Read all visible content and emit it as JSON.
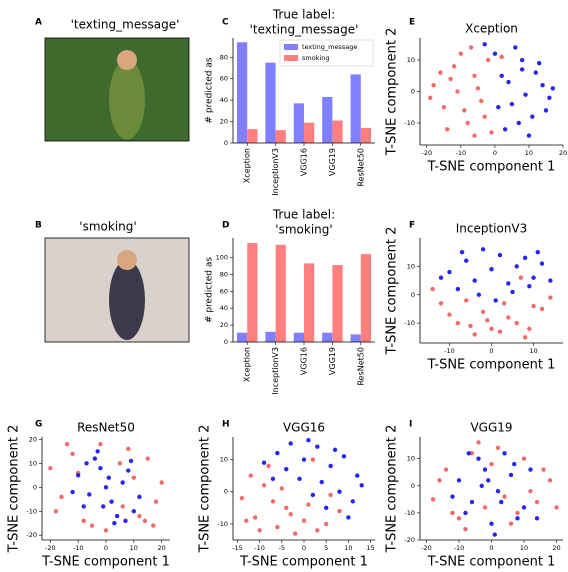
{
  "chart_data": [
    {
      "type": "image",
      "panel_label": "A",
      "title": "'texting_message'"
    },
    {
      "type": "image",
      "panel_label": "B",
      "title": "'smoking'"
    },
    {
      "type": "bar",
      "panel_label": "C",
      "title": [
        "True label:",
        "'texting_message'"
      ],
      "ylabel": "# predicted as",
      "categories": [
        "Xception",
        "InceptionV3",
        "VGG16",
        "VGG19",
        "ResNet50"
      ],
      "series": [
        {
          "name": "texting_message",
          "color": "#7f7fff",
          "values": [
            94,
            75,
            37,
            43,
            64
          ]
        },
        {
          "name": "smoking",
          "color": "#ff7f7f",
          "values": [
            13,
            12,
            19,
            21,
            14
          ]
        }
      ],
      "ylim": [
        0,
        98
      ],
      "yticks": [
        0,
        20,
        40,
        60,
        80
      ],
      "legend": "upper right"
    },
    {
      "type": "bar",
      "panel_label": "D",
      "title": [
        "True label:",
        "'smoking'"
      ],
      "ylabel": "# predicted as",
      "categories": [
        "Xception",
        "InceptionV3",
        "VGG16",
        "VGG19",
        "ResNet50"
      ],
      "series": [
        {
          "name": "texting_message",
          "color": "#7f7fff",
          "values": [
            11,
            12,
            11,
            11,
            9
          ]
        },
        {
          "name": "smoking",
          "color": "#ff7f7f",
          "values": [
            117,
            115,
            93,
            91,
            104
          ]
        }
      ],
      "ylim": [
        0,
        123
      ],
      "yticks": [
        0,
        20,
        40,
        60,
        80,
        100
      ],
      "legend": false
    },
    {
      "type": "scatter",
      "panel_label": "E",
      "title": "Xception",
      "xlabel": "T-SNE component 1",
      "ylabel": "T-SNE component 2",
      "xlim": [
        -22,
        20
      ],
      "ylim": [
        -17,
        17
      ],
      "xticks": [
        -20,
        -10,
        0,
        10,
        20
      ],
      "yticks": [
        -10,
        0,
        10
      ],
      "series": [
        {
          "color": "#f05050",
          "x": [
            -18,
            -15,
            -12,
            -10,
            -8,
            -6,
            -4,
            -2,
            -14,
            -11,
            -7,
            -3,
            -16,
            -9,
            -5,
            -1,
            -13,
            -6,
            2,
            -19
          ],
          "y": [
            2,
            -5,
            8,
            12,
            -10,
            5,
            -3,
            10,
            -12,
            0,
            14,
            -8,
            6,
            -6,
            1,
            -13,
            4,
            -14,
            11,
            -2
          ]
        },
        {
          "color": "#0000ee",
          "x": [
            2,
            5,
            8,
            11,
            14,
            16,
            3,
            6,
            9,
            12,
            15,
            0,
            4,
            7,
            10,
            13,
            17,
            1,
            8,
            -3
          ],
          "y": [
            5,
            -4,
            10,
            -8,
            2,
            -2,
            -12,
            14,
            -1,
            6,
            -6,
            12,
            3,
            -10,
            -14,
            9,
            1,
            -5,
            7,
            15
          ]
        }
      ]
    },
    {
      "type": "scatter",
      "panel_label": "F",
      "title": "InceptionV3",
      "xlabel": "T-SNE component 1",
      "ylabel": "T-SNE component 2",
      "xlim": [
        -17,
        17
      ],
      "ylim": [
        -17,
        20
      ],
      "xticks": [
        -10,
        0,
        10
      ],
      "yticks": [
        -10,
        0,
        10
      ],
      "series": [
        {
          "color": "#f05050",
          "x": [
            -12,
            -8,
            -4,
            0,
            4,
            8,
            12,
            -10,
            -6,
            -2,
            2,
            6,
            10,
            14,
            -14,
            -5,
            3,
            9,
            -1,
            7
          ],
          "y": [
            -3,
            -10,
            -14,
            -12,
            -8,
            -15,
            -5,
            -7,
            -2,
            -6,
            -13,
            -10,
            -4,
            -1,
            2,
            -11,
            -3,
            -12,
            -9,
            6
          ]
        },
        {
          "color": "#0000ee",
          "x": [
            -10,
            -6,
            -2,
            2,
            6,
            10,
            -8,
            -4,
            0,
            4,
            8,
            12,
            -12,
            -3,
            5,
            11,
            -7,
            1,
            9,
            14
          ],
          "y": [
            8,
            12,
            16,
            14,
            10,
            6,
            2,
            5,
            9,
            4,
            13,
            11,
            6,
            0,
            1,
            15,
            15,
            -2,
            3,
            5
          ]
        }
      ]
    },
    {
      "type": "scatter",
      "panel_label": "G",
      "title": "ResNet50",
      "xlabel": "T-SNE component 1",
      "ylabel": "T-SNE component 2",
      "xlim": [
        -23,
        23
      ],
      "ylim": [
        -22,
        21
      ],
      "xticks": [
        -20,
        -10,
        0,
        10,
        20
      ],
      "yticks": [
        -20,
        -10,
        0,
        10,
        20
      ],
      "series": [
        {
          "color": "#f05050",
          "x": [
            -20,
            -16,
            -12,
            -8,
            15,
            18,
            12,
            8,
            -18,
            20,
            -5,
            5,
            0,
            -14,
            14,
            10,
            -10,
            17,
            -2,
            6
          ],
          "y": [
            8,
            -4,
            14,
            -14,
            12,
            -6,
            -12,
            16,
            -10,
            2,
            -16,
            10,
            -18,
            18,
            -14,
            4,
            6,
            -16,
            18,
            -8
          ]
        },
        {
          "color": "#0000ee",
          "x": [
            -10,
            -6,
            -2,
            2,
            6,
            10,
            -8,
            -4,
            0,
            4,
            8,
            -12,
            12,
            -3,
            3,
            -7,
            7,
            1,
            -1,
            9
          ],
          "y": [
            5,
            -3,
            8,
            -6,
            2,
            -10,
            -8,
            12,
            0,
            -12,
            7,
            -2,
            -4,
            15,
            -15,
            10,
            -14,
            4,
            -8,
            11
          ]
        }
      ]
    },
    {
      "type": "scatter",
      "panel_label": "H",
      "title": "VGG16",
      "xlabel": "T-SNE component 1",
      "ylabel": "T-SNE component 2",
      "xlim": [
        -16,
        16
      ],
      "ylim": [
        -15,
        17
      ],
      "xticks": [
        -15,
        -10,
        -5,
        0,
        5,
        10,
        15
      ],
      "yticks": [
        -10,
        0,
        10
      ],
      "series": [
        {
          "color": "#f05050",
          "x": [
            -14,
            -11,
            -9,
            -6,
            -4,
            -2,
            0,
            3,
            -12,
            -7,
            -3,
            1,
            5,
            -10,
            -5,
            8,
            -13,
            2,
            6,
            -8
          ],
          "y": [
            -2,
            -8,
            2,
            -11,
            -5,
            -13,
            -9,
            -12,
            5,
            -3,
            -7,
            -4,
            -10,
            -12,
            1,
            -6,
            -9,
            10,
            -1,
            8
          ]
        },
        {
          "color": "#0000ee",
          "x": [
            -6,
            -3,
            0,
            3,
            6,
            9,
            12,
            -9,
            -1,
            4,
            8,
            11,
            -4,
            2,
            7,
            13,
            -7,
            1,
            10,
            5
          ],
          "y": [
            12,
            15,
            10,
            14,
            8,
            11,
            5,
            9,
            4,
            3,
            0,
            -3,
            7,
            -1,
            13,
            2,
            4,
            16,
            -8,
            -5
          ]
        }
      ]
    },
    {
      "type": "scatter",
      "panel_label": "I",
      "title": "VGG19",
      "xlabel": "T-SNE component 1",
      "ylabel": "T-SNE component 2",
      "xlim": [
        -22,
        22
      ],
      "ylim": [
        -20,
        18
      ],
      "xticks": [
        -20,
        -10,
        0,
        10,
        20
      ],
      "yticks": [
        -20,
        -10,
        0,
        10
      ],
      "series": [
        {
          "color": "#f05050",
          "x": [
            -18,
            -14,
            -10,
            -6,
            -2,
            2,
            6,
            10,
            14,
            18,
            -16,
            -8,
            0,
            8,
            16,
            -12,
            4,
            12,
            -4,
            20
          ],
          "y": [
            -5,
            6,
            -12,
            12,
            -8,
            14,
            -14,
            10,
            -6,
            2,
            2,
            -16,
            8,
            -10,
            6,
            -10,
            -4,
            -2,
            16,
            -8
          ]
        },
        {
          "color": "#0000ee",
          "x": [
            -10,
            -6,
            -2,
            2,
            6,
            10,
            -8,
            -4,
            0,
            4,
            8,
            -12,
            12,
            -3,
            3,
            -7,
            7,
            1,
            -1,
            14
          ],
          "y": [
            2,
            -6,
            6,
            -2,
            4,
            -8,
            -10,
            10,
            -14,
            12,
            -12,
            -4,
            6,
            0,
            -6,
            12,
            8,
            -18,
            2,
            -12
          ]
        }
      ]
    }
  ]
}
